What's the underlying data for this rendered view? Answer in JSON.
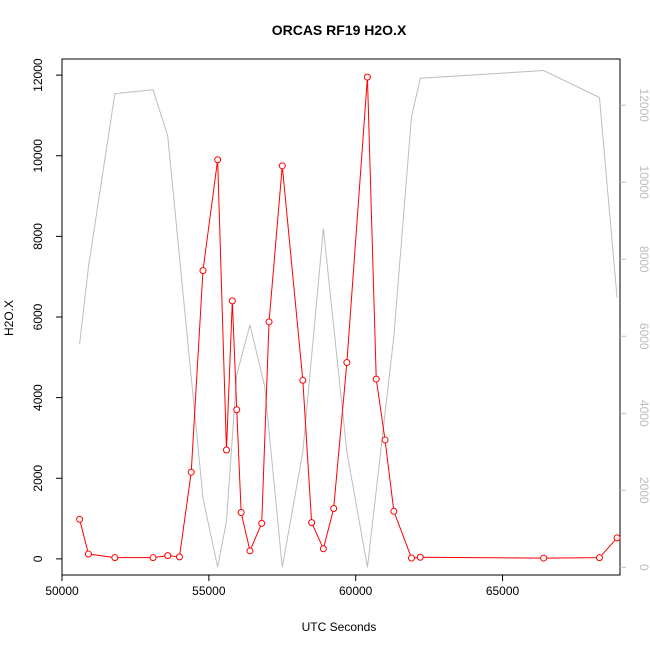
{
  "chart_data": {
    "type": "line",
    "title": "ORCAS RF19 H2O.X",
    "xlabel": "UTC Seconds",
    "ylabel": "H2O.X",
    "xlim": [
      50000,
      69000
    ],
    "ylim": [
      -400,
      12400
    ],
    "y2lim": [
      -200,
      13200
    ],
    "x_ticks": [
      "50000",
      "55000",
      "60000",
      "65000"
    ],
    "y_ticks": [
      "0",
      "2000",
      "4000",
      "6000",
      "8000",
      "10000",
      "12000"
    ],
    "y2_ticks": [
      "0",
      "2000",
      "4000",
      "6000",
      "8000",
      "10000",
      "12000"
    ],
    "grid": false,
    "colors": {
      "series": "#ff0000",
      "secondary": "#bebebe",
      "axis": "#000000"
    },
    "series": [
      {
        "axis": "left",
        "marker": "open-circle",
        "x": [
          50600,
          50900,
          51800,
          53100,
          53600,
          54000,
          54400,
          54800,
          55300,
          55600,
          55800,
          55950,
          56100,
          56400,
          56800,
          57050,
          57500,
          58200,
          58500,
          58900,
          59250,
          59700,
          60400,
          60700,
          61000,
          61300,
          61900,
          62200,
          66400,
          68300,
          68900
        ],
        "y": [
          980,
          120,
          30,
          30,
          80,
          50,
          2150,
          7150,
          9900,
          2700,
          6400,
          3700,
          1150,
          200,
          880,
          5880,
          9750,
          4430,
          900,
          250,
          1250,
          4870,
          11950,
          4460,
          2950,
          1180,
          20,
          40,
          20,
          30,
          520
        ]
      },
      {
        "axis": "right",
        "marker": "none",
        "x": [
          50600,
          50900,
          51800,
          53100,
          53600,
          54200,
          54800,
          55300,
          55600,
          55950,
          56400,
          56900,
          57500,
          58200,
          58900,
          59700,
          60400,
          61300,
          61900,
          62200,
          66400,
          68300,
          68900
        ],
        "y": [
          5800,
          7800,
          12300,
          12400,
          11200,
          6500,
          1800,
          0,
          1200,
          5000,
          6300,
          4700,
          0,
          3000,
          8800,
          3000,
          0,
          6000,
          11700,
          12700,
          12900,
          12200,
          7000
        ]
      }
    ]
  }
}
